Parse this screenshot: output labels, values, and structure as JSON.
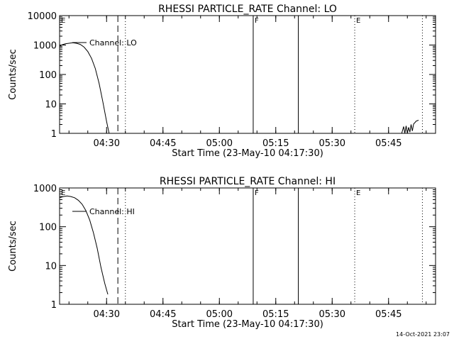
{
  "footer": {
    "date_stamp": "14-Oct-2021 23:07"
  },
  "chart_data": [
    {
      "type": "line",
      "title": "RHESSI PARTICLE_RATE Channel: LO",
      "xlabel": "Start Time (23-May-10 04:17:30)",
      "ylabel": "Counts/sec",
      "y_scale": "log",
      "ylim": [
        1,
        10000
      ],
      "y_ticks": [
        {
          "value": 1,
          "label": "1"
        },
        {
          "value": 10,
          "label": "10"
        },
        {
          "value": 100,
          "label": "100"
        },
        {
          "value": 1000,
          "label": "1000"
        },
        {
          "value": 10000,
          "label": "10000"
        }
      ],
      "xlim": [
        "04:17:30",
        "05:57:30"
      ],
      "x_ticks": [
        "04:30",
        "04:45",
        "05:00",
        "05:15",
        "05:30",
        "05:45"
      ],
      "legend": {
        "placement": "top-left",
        "entries": [
          "Channel: LO"
        ]
      },
      "markers": [
        {
          "time": "04:33",
          "style": "dashed",
          "label": ""
        },
        {
          "time": "04:35",
          "style": "dotted",
          "label": ""
        },
        {
          "time": "05:09",
          "style": "solid",
          "label": "F"
        },
        {
          "time": "05:21",
          "style": "solid",
          "label": ""
        },
        {
          "time": "05:36",
          "style": "dotted",
          "label": "E"
        },
        {
          "time": "05:54",
          "style": "dotted",
          "label": ""
        }
      ],
      "corner_label": "E",
      "series": [
        {
          "name": "Channel: LO",
          "segments": [
            {
              "x": [
                "04:17:30",
                "04:18:00",
                "04:19:00",
                "04:20:00",
                "04:21:00",
                "04:22:00",
                "04:23:00",
                "04:24:00",
                "04:25:00",
                "04:26:00",
                "04:27:00",
                "04:28:00",
                "04:29:00",
                "04:30:00",
                "04:30:40"
              ],
              "y": [
                900,
                1000,
                1100,
                1150,
                1200,
                1150,
                1050,
                850,
                600,
                350,
                160,
                50,
                12,
                2.5,
                1
              ]
            },
            {
              "x": [
                "05:48:30",
                "05:49:00",
                "05:49:20",
                "05:49:40",
                "05:50:00",
                "05:50:20",
                "05:50:40",
                "05:51:00",
                "05:51:20",
                "05:51:40",
                "05:52:00",
                "05:52:20",
                "05:52:40",
                "05:53:00"
              ],
              "y": [
                1,
                1.7,
                1,
                1.8,
                1,
                1.6,
                1.1,
                2.0,
                1.2,
                2.1,
                2.3,
                2.6,
                2.7,
                2.8
              ]
            }
          ]
        }
      ]
    },
    {
      "type": "line",
      "title": "RHESSI PARTICLE_RATE Channel: HI",
      "xlabel": "Start Time (23-May-10 04:17:30)",
      "ylabel": "Counts/sec",
      "y_scale": "log",
      "ylim": [
        1,
        1000
      ],
      "y_ticks": [
        {
          "value": 1,
          "label": "1"
        },
        {
          "value": 10,
          "label": "10"
        },
        {
          "value": 100,
          "label": "100"
        },
        {
          "value": 1000,
          "label": "1000"
        }
      ],
      "xlim": [
        "04:17:30",
        "05:57:30"
      ],
      "x_ticks": [
        "04:30",
        "04:45",
        "05:00",
        "05:15",
        "05:30",
        "05:45"
      ],
      "legend": {
        "placement": "top-left",
        "entries": [
          "Channel: HI"
        ]
      },
      "markers": [
        {
          "time": "04:33",
          "style": "dashed",
          "label": ""
        },
        {
          "time": "04:35",
          "style": "dotted",
          "label": ""
        },
        {
          "time": "05:09",
          "style": "solid",
          "label": "F"
        },
        {
          "time": "05:21",
          "style": "solid",
          "label": ""
        },
        {
          "time": "05:36",
          "style": "dotted",
          "label": "E"
        },
        {
          "time": "05:54",
          "style": "dotted",
          "label": ""
        }
      ],
      "corner_label": "E",
      "series": [
        {
          "name": "Channel: HI",
          "segments": [
            {
              "x": [
                "04:17:30",
                "04:18:30",
                "04:19:30",
                "04:20:30",
                "04:21:30",
                "04:22:30",
                "04:23:30",
                "04:24:30",
                "04:25:30",
                "04:26:30",
                "04:27:30",
                "04:28:30",
                "04:29:30",
                "04:30:20"
              ],
              "y": [
                560,
                600,
                620,
                600,
                560,
                480,
                380,
                260,
                150,
                70,
                28,
                9,
                3.5,
                1.8
              ]
            }
          ]
        }
      ]
    }
  ]
}
